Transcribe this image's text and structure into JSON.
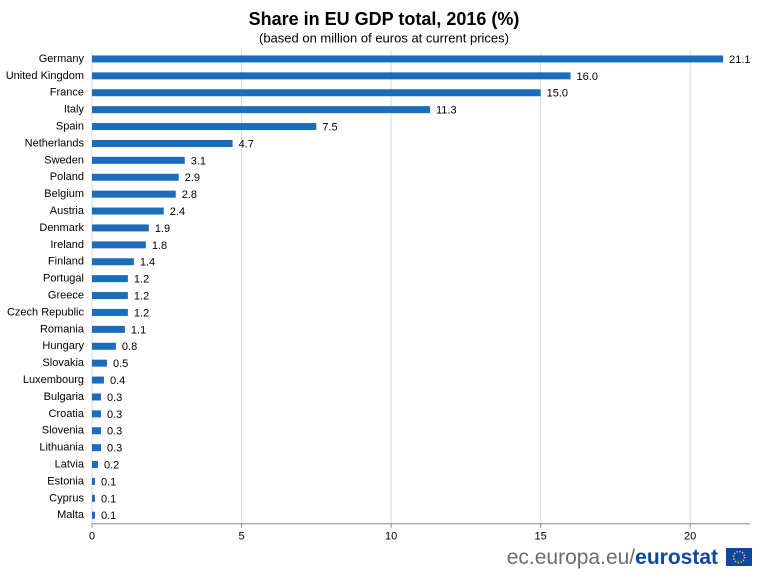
{
  "chart_data": {
    "type": "barh",
    "title": "Share in EU GDP total, 2016 (%)",
    "subtitle": "(based on million of euros at current prices)",
    "categories": [
      "Germany",
      "United Kingdom",
      "France",
      "Italy",
      "Spain",
      "Netherlands",
      "Sweden",
      "Poland",
      "Belgium",
      "Austria",
      "Denmark",
      "Ireland",
      "Finland",
      "Portugal",
      "Greece",
      "Czech Republic",
      "Romania",
      "Hungary",
      "Slovakia",
      "Luxembourg",
      "Bulgaria",
      "Croatia",
      "Slovenia",
      "Lithuania",
      "Latvia",
      "Estonia",
      "Cyprus",
      "Malta"
    ],
    "values": [
      21.1,
      16.0,
      15.0,
      11.3,
      7.5,
      4.7,
      3.1,
      2.9,
      2.8,
      2.4,
      1.9,
      1.8,
      1.4,
      1.2,
      1.2,
      1.2,
      1.1,
      0.8,
      0.5,
      0.4,
      0.3,
      0.3,
      0.3,
      0.3,
      0.2,
      0.1,
      0.1,
      0.1
    ],
    "value_labels": [
      "21.1",
      "16.0",
      "15.0",
      "11.3",
      "7.5",
      "4.7",
      "3.1",
      "2.9",
      "2.8",
      "2.4",
      "1.9",
      "1.8",
      "1.4",
      "1.2",
      "1.2",
      "1.2",
      "1.1",
      "0.8",
      "0.5",
      "0.4",
      "0.3",
      "0.3",
      "0.3",
      "0.3",
      "0.2",
      "0.1",
      "0.1",
      "0.1"
    ],
    "color": "#1a6dbd",
    "xlim": [
      0,
      22
    ],
    "xticks": [
      0,
      5,
      10,
      15,
      20
    ],
    "grid": true
  },
  "footer": {
    "site": "ec.europa.eu/",
    "brand": "eurostat"
  }
}
